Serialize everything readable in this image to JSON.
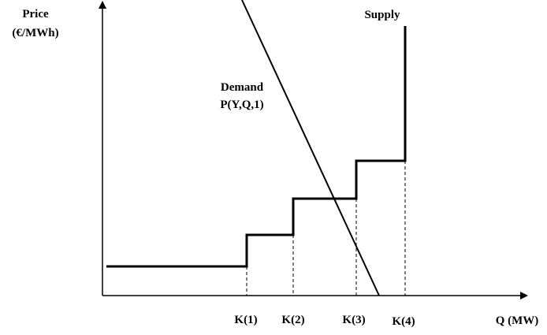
{
  "axes": {
    "y_label": [
      "Price",
      "(€/MWh)"
    ],
    "x_label": "Q (MW)"
  },
  "curves": {
    "supply": "Supply",
    "demand": [
      "Demand",
      "P(Y,Q,1)"
    ]
  },
  "capacities": [
    "K(1)",
    "K(2)",
    "K(3)",
    "K(4)"
  ]
}
